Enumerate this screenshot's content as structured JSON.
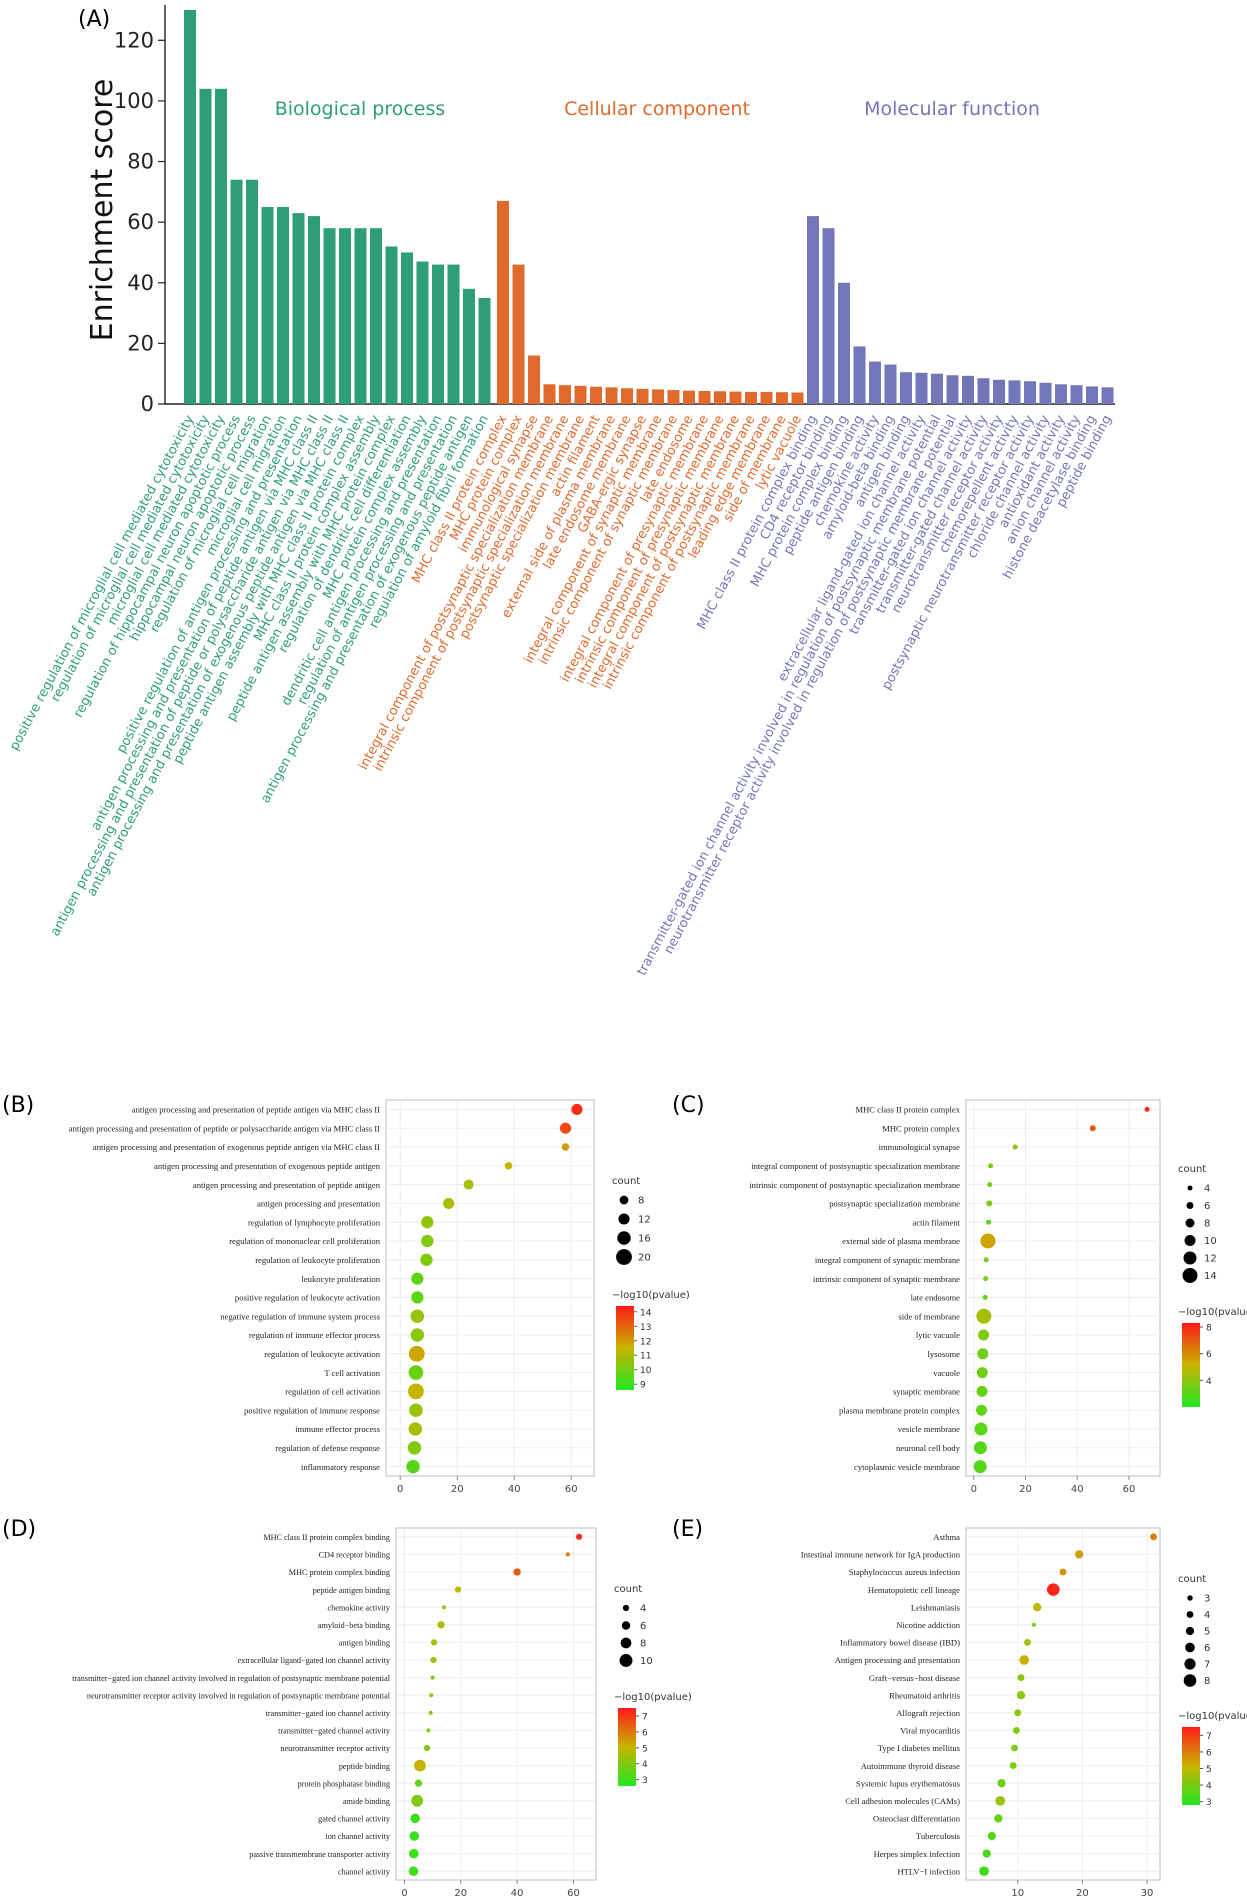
{
  "colors": {
    "biological_process": "#2e9e78",
    "cellular_component": "#e06a2c",
    "molecular_function": "#7376b8",
    "pvalue_high": "#ff1a1a",
    "pvalue_mid": "#c8b400",
    "pvalue_low": "#22e622"
  },
  "panel_labels": {
    "a": "(A)",
    "b": "(B)",
    "c": "(C)",
    "d": "(D)",
    "e": "(E)"
  },
  "chart_data": [
    {
      "panel": "(A)",
      "type": "bar",
      "xlabel": "",
      "ylabel": "Enrichment score",
      "ylim": [
        0,
        130
      ],
      "yticks": [
        0,
        20,
        40,
        60,
        80,
        100,
        120
      ],
      "series": [
        {
          "name": "Biological process",
          "color": "#2e9e78",
          "categories": [
            "positive regulation of microglial cell mediated cytotoxicity",
            "regulation of microglial cell mediated cytotoxicity",
            "microglial cell mediated cytotoxicity",
            "regulation of hippocampal neuron apoptotic process",
            "hippocampal neuron apoptotic process",
            "regulation of microglial cell migration",
            "microglial cell migration",
            "positive regulation of antigen processing and presentation",
            "antigen processing and presentation of peptide antigen via MHC class II",
            "antigen processing and presentation of peptide or polysaccharide antigen via MHC class II",
            "antigen processing and presentation of exogenous peptide antigen via MHC class II",
            "peptide antigen assembly with MHC class II protein complex",
            "MHC class II protein complex assembly",
            "peptide antigen assembly with MHC protein complex",
            "regulation of dendritic cell differentiation",
            "MHC protein complex assembly",
            "dendritic cell antigen processing and presentation",
            "regulation of antigen processing and presentation",
            "antigen processing and presentation of exogenous peptide antigen",
            "regulation of amyloid fibril formation"
          ],
          "values": [
            130,
            104,
            104,
            74,
            74,
            65,
            65,
            63,
            62,
            58,
            58,
            58,
            58,
            52,
            50,
            47,
            46,
            46,
            38,
            35
          ]
        },
        {
          "name": "Cellular component",
          "color": "#e06a2c",
          "categories": [
            "MHC class II protein complex",
            "MHC protein complex",
            "immunological synapse",
            "integral component of postsynaptic specialization membrane",
            "intrinsic component of postsynaptic specialization membrane",
            "postsynaptic specialization membrane",
            "actin filament",
            "external side of plasma membrane",
            "late endosome membrane",
            "GABA-ergic synapse",
            "integral component of synaptic membrane",
            "intrinsic component of synaptic membrane",
            "late endosome",
            "integral component of presynaptic membrane",
            "intrinsic component of presynaptic membrane",
            "integral component of postsynaptic membrane",
            "intrinsic component of postsynaptic membrane",
            "leading edge membrane",
            "side of membrane",
            "lytic vacuole"
          ],
          "values": [
            67,
            46,
            16,
            6.5,
            6.2,
            6,
            5.7,
            5.5,
            5.2,
            5,
            4.8,
            4.6,
            4.4,
            4.3,
            4.2,
            4.1,
            4,
            4,
            3.9,
            3.8
          ]
        },
        {
          "name": "Molecular function",
          "color": "#7376b8",
          "categories": [
            "MHC class II protein complex binding",
            "CD4 receptor binding",
            "MHC protein complex binding",
            "peptide antigen binding",
            "chemokine activity",
            "amyloid-beta binding",
            "antigen binding",
            "extracellular ligand-gated ion channel activity",
            "transmitter-gated ion channel activity involved in regulation of postsynaptic membrane potential",
            "neurotransmitter receptor activity involved in regulation of postsynaptic membrane potential",
            "transmitter-gated ion channel activity",
            "transmitter-gated channel activity",
            "neurotransmitter receptor activity",
            "chemorepellent activity",
            "postsynaptic neurotransmitter receptor activity",
            "chloride channel activity",
            "antioxidant activity",
            "anion channel activity",
            "histone deacetylase binding",
            "peptide binding"
          ],
          "values": [
            62,
            58,
            40,
            19,
            14,
            13,
            10.5,
            10.3,
            10,
            9.5,
            9.3,
            8.5,
            8,
            7.8,
            7.5,
            7,
            6.5,
            6.2,
            5.8,
            5.5
          ]
        }
      ]
    },
    {
      "panel": "(B)",
      "type": "scatter",
      "x_ticks": [
        0,
        20,
        40,
        60
      ],
      "xlim": [
        -5,
        68
      ],
      "size_legend": {
        "title": "count",
        "values": [
          8,
          12,
          16,
          20
        ],
        "range": [
          5,
          22
        ]
      },
      "color_legend": {
        "title": "−log10(pvalue)",
        "ticks": [
          9,
          10,
          11,
          12,
          13,
          14
        ],
        "range": [
          8.6,
          14.4
        ]
      },
      "terms": [
        "antigen processing and presentation of peptide antigen via MHC class II",
        "antigen processing and presentation of peptide or polysaccharide antigen via MHC class II",
        "antigen processing and presentation of exogenous peptide antigen via MHC class II",
        "antigen processing and presentation of exogenous peptide antigen",
        "antigen processing and presentation of peptide antigen",
        "antigen processing and presentation",
        "regulation of lymphocyte proliferation",
        "regulation of mononuclear cell proliferation",
        "regulation of leukocyte proliferation",
        "leukocyte proliferation",
        "positive regulation of leukocyte activation",
        "negative regulation of immune system process",
        "regulation of immune effector process",
        "regulation of leukocyte activation",
        "T cell activation",
        "regulation of cell activation",
        "positive regulation of immune response",
        "immune effector process",
        "regulation of defense response",
        "inflammatory response"
      ],
      "x": [
        62,
        58,
        58,
        38,
        24,
        17,
        9.5,
        9.5,
        9.2,
        6,
        6,
        6,
        6,
        5.8,
        5.5,
        5.5,
        5.5,
        5.3,
        5,
        4.5
      ],
      "count": [
        12,
        12,
        6,
        6,
        10,
        12,
        14,
        14,
        14,
        14,
        14,
        16,
        16,
        20,
        18,
        20,
        16,
        16,
        16,
        16
      ],
      "neglog10p": [
        14,
        13.5,
        12,
        11.5,
        11,
        11,
        10.5,
        10.3,
        10.2,
        9.6,
        9.6,
        10.6,
        10.5,
        11.8,
        9.8,
        11.5,
        10.7,
        11,
        10.3,
        9.5
      ]
    },
    {
      "panel": "(C)",
      "type": "scatter",
      "x_ticks": [
        0,
        20,
        40,
        60
      ],
      "xlim": [
        -3,
        72
      ],
      "size_legend": {
        "title": "count",
        "values": [
          4,
          6,
          8,
          10,
          12,
          14
        ],
        "range": [
          4,
          16
        ]
      },
      "color_legend": {
        "title": "−log10(pvalue)",
        "ticks": [
          4,
          6,
          8
        ],
        "range": [
          2,
          8.3
        ]
      },
      "terms": [
        "MHC class II protein complex",
        "MHC protein complex",
        "immunological synapse",
        "integral component of postsynaptic specialization membrane",
        "intrinsic component of postsynaptic specialization membrane",
        "postsynaptic specialization membrane",
        "actin filament",
        "external side of plasma membrane",
        "integral component of synaptic membrane",
        "intrinsic component of synaptic membrane",
        "late endosome",
        "side of membrane",
        "lytic vacuole",
        "lysosome",
        "vacuole",
        "synaptic membrane",
        "plasma membrane protein complex",
        "vesicle membrane",
        "neuronal cell body",
        "cytoplasmic vesicle membrane"
      ],
      "x": [
        67,
        46,
        16,
        6.5,
        6.2,
        6,
        5.7,
        5.5,
        4.8,
        4.6,
        4.4,
        3.9,
        3.8,
        3.5,
        3.3,
        3.2,
        3,
        2.8,
        2.6,
        2.5
      ],
      "count": [
        4,
        5,
        3,
        3,
        3,
        5,
        3,
        14,
        4,
        4,
        4,
        14,
        10,
        10,
        10,
        10,
        10,
        12,
        12,
        12
      ],
      "neglog10p": [
        8,
        7,
        4,
        3.5,
        3.5,
        3.8,
        3,
        5.5,
        3.4,
        3.4,
        3.2,
        4.5,
        3.8,
        3.5,
        3.5,
        3.3,
        3.2,
        3.1,
        3,
        3
      ]
    },
    {
      "panel": "(D)",
      "type": "scatter",
      "x_ticks": [
        0,
        20,
        40,
        60
      ],
      "xlim": [
        -3,
        68
      ],
      "size_legend": {
        "title": "count",
        "values": [
          4,
          6,
          8,
          10
        ],
        "range": [
          2,
          11
        ]
      },
      "color_legend": {
        "title": "−log10(pvalue)",
        "ticks": [
          3,
          4,
          5,
          6,
          7
        ],
        "range": [
          2.6,
          7.5
        ]
      },
      "terms": [
        "MHC class II protein complex binding",
        "CD4 receptor binding",
        "MHC protein complex binding",
        "peptide antigen binding",
        "chemokine activity",
        "amyloid−beta binding",
        "antigen binding",
        "extracellular ligand−gated ion channel activity",
        "transmitter−gated ion channel activity involved in regulation of postsynaptic membrane potential",
        "neurotransmitter receptor activity involved in regulation of postsynaptic membrane potential",
        "transmitter−gated ion channel activity",
        "transmitter−gated channel activity",
        "neurotransmitter receptor activity",
        "peptide binding",
        "protein phosphatase binding",
        "amide binding",
        "gated channel activity",
        "ion channel activity",
        "passive transmembrane transporter activity",
        "channel activity"
      ],
      "x": [
        62,
        58,
        40,
        19,
        14,
        13,
        10.5,
        10.3,
        10,
        9.5,
        9.3,
        8.5,
        8,
        5.5,
        5,
        4.5,
        3.8,
        3.5,
        3.3,
        3.2
      ],
      "count": [
        4,
        2,
        5,
        4,
        2,
        5,
        4,
        4,
        2,
        2,
        2,
        2,
        4,
        9,
        5,
        9,
        7,
        7,
        7,
        7
      ],
      "neglog10p": [
        7.2,
        6,
        6.5,
        5,
        4.5,
        4.7,
        4.5,
        4.4,
        4,
        4,
        4,
        4,
        4,
        5,
        3.5,
        4,
        3,
        3,
        3,
        3
      ]
    },
    {
      "panel": "(E)",
      "type": "scatter",
      "x_ticks": [
        10,
        20,
        30
      ],
      "xlim": [
        2,
        32
      ],
      "size_legend": {
        "title": "count",
        "values": [
          3,
          4,
          5,
          6,
          7,
          8
        ],
        "range": [
          2,
          9
        ]
      },
      "color_legend": {
        "title": "−log10(pvalue)",
        "ticks": [
          3,
          4,
          5,
          6,
          7
        ],
        "range": [
          2.8,
          7.5
        ]
      },
      "terms": [
        "Asthma",
        "Intestinal immune network for IgA production",
        "Staphylococcus aureus infection",
        "Hematopoietic cell lineage",
        "Leishmaniasis",
        "Nicotine addiction",
        "Inflammatory bowel disease (IBD)",
        "Antigen processing and presentation",
        "Graft−versus−host disease",
        "Rheumatoid arthritis",
        "Allograft rejection",
        "Viral myocarditis",
        "Type I diabetes mellitus",
        "Autoimmune thyroid disease",
        "Systemic lupus erythematosus",
        "Cell adhesion molecules (CAMs)",
        "Osteoclast differentiation",
        "Tuberculosis",
        "Herpes simplex infection",
        "HTLV−I infection"
      ],
      "x": [
        31,
        19.5,
        17,
        15.5,
        13,
        12.5,
        11.5,
        11,
        10.5,
        10.5,
        10,
        9.8,
        9.5,
        9.3,
        7.5,
        7.3,
        7,
        6,
        5.2,
        4.8
      ],
      "count": [
        4,
        5,
        4,
        8,
        5,
        2,
        4,
        6,
        4,
        5,
        4,
        4,
        4,
        4,
        5,
        6,
        5,
        5,
        5,
        6
      ],
      "neglog10p": [
        6,
        5.5,
        5.7,
        7.3,
        5,
        4,
        4.5,
        5.2,
        4.3,
        4.3,
        4.2,
        4.1,
        4.1,
        4,
        3.9,
        4.5,
        3.8,
        3.5,
        3.4,
        3.2
      ]
    }
  ]
}
